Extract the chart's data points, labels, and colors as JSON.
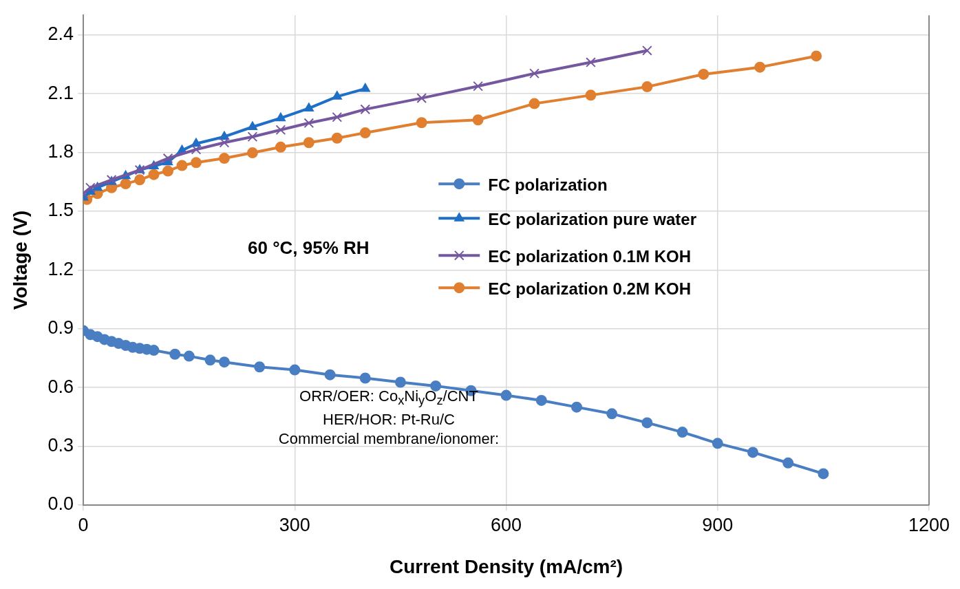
{
  "chart_data": {
    "type": "line",
    "xlabel": "Current Density (mA/cm²)",
    "ylabel": "Voltage (V)",
    "xlim": [
      0,
      1200
    ],
    "xticks": [
      0,
      300,
      600,
      900,
      1200
    ],
    "ylim": [
      0,
      2.5
    ],
    "yticks": [
      {
        "value": 0,
        "label": "0.0"
      },
      {
        "value": 0.3,
        "label": "0.3"
      },
      {
        "value": 0.6,
        "label": "0.6"
      },
      {
        "value": 0.9,
        "label": "0.9"
      },
      {
        "value": 1.2,
        "label": "1.2"
      },
      {
        "value": 1.5,
        "label": "1.5"
      },
      {
        "value": 1.8,
        "label": "1.8"
      },
      {
        "value": 2.1,
        "label": "2.1"
      },
      {
        "value": 2.4,
        "label": "2.4"
      }
    ],
    "grid": true,
    "legend": "right",
    "line_style": "solid",
    "series": [
      {
        "name": "FC polarization",
        "color": "#4a7ec3",
        "marker": "circle",
        "x": [
          0,
          10,
          20,
          30,
          40,
          50,
          60,
          70,
          80,
          90,
          100,
          130,
          150,
          180,
          200,
          250,
          300,
          350,
          400,
          450,
          500,
          550,
          600,
          650,
          700,
          750,
          800,
          850,
          900,
          950,
          1000,
          1050
        ],
        "values": [
          0.89,
          0.87,
          0.86,
          0.845,
          0.835,
          0.825,
          0.815,
          0.805,
          0.8,
          0.795,
          0.79,
          0.77,
          0.76,
          0.74,
          0.73,
          0.705,
          0.69,
          0.665,
          0.648,
          0.627,
          0.608,
          0.584,
          0.56,
          0.534,
          0.5,
          0.466,
          0.42,
          0.372,
          0.315,
          0.269,
          0.215,
          0.16
        ]
      },
      {
        "name": "EC polarization pure water",
        "color": "#1f6fc6",
        "marker": "triangle",
        "x": [
          0,
          10,
          20,
          40,
          60,
          80,
          100,
          120,
          140,
          160,
          200,
          240,
          280,
          320,
          360,
          400
        ],
        "values": [
          1.57,
          1.6,
          1.62,
          1.65,
          1.68,
          1.71,
          1.73,
          1.75,
          1.81,
          1.845,
          1.88,
          1.93,
          1.975,
          2.025,
          2.085,
          2.125
        ]
      },
      {
        "name": "EC polarization 0.1M KOH",
        "color": "#7557a0",
        "marker": "cross",
        "x": [
          0,
          10,
          40,
          80,
          120,
          160,
          200,
          240,
          280,
          320,
          360,
          400,
          480,
          560,
          640,
          720,
          800
        ],
        "values": [
          1.59,
          1.62,
          1.66,
          1.71,
          1.77,
          1.815,
          1.85,
          1.88,
          1.915,
          1.95,
          1.98,
          2.02,
          2.077,
          2.138,
          2.203,
          2.26,
          2.32
        ]
      },
      {
        "name": "EC polarization 0.2M KOH",
        "color": "#e07f2f",
        "marker": "circle",
        "x": [
          5,
          20,
          40,
          60,
          80,
          100,
          120,
          140,
          160,
          200,
          240,
          280,
          320,
          360,
          400,
          480,
          560,
          640,
          720,
          800,
          880,
          960,
          1040
        ],
        "values": [
          1.56,
          1.59,
          1.62,
          1.64,
          1.66,
          1.687,
          1.705,
          1.733,
          1.748,
          1.77,
          1.798,
          1.827,
          1.85,
          1.873,
          1.9,
          1.952,
          1.966,
          2.049,
          2.092,
          2.135,
          2.199,
          2.235,
          2.292
        ]
      }
    ],
    "annotations": [
      "60 °C, 95% RH",
      "ORR/OER: Co$_{x}$Ni$_{y}$O$_{z}$/CNT",
      "HER/HOR:  Pt-Ru/C",
      "Commercial membrane/ionomer:"
    ]
  }
}
